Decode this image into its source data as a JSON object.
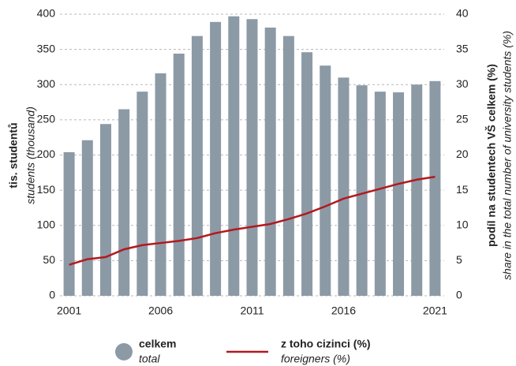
{
  "chart_data": {
    "type": "bar_line",
    "categories": [
      "2001",
      null,
      null,
      null,
      null,
      "2006",
      null,
      null,
      null,
      null,
      "2011",
      null,
      null,
      null,
      null,
      "2016",
      null,
      null,
      null,
      null,
      "2021"
    ],
    "series": [
      {
        "name": "celkem",
        "name_en": "total",
        "type": "bar",
        "color": "#8c9aa6",
        "values": [
          204,
          221,
          244,
          265,
          290,
          316,
          344,
          369,
          389,
          397,
          393,
          381,
          369,
          346,
          327,
          310,
          299,
          290,
          289,
          300,
          305
        ]
      },
      {
        "name": "z toho cizinci (%)",
        "name_en": "foreigners (%)",
        "type": "line",
        "axis": "y2",
        "color": "#b2191e",
        "values": [
          4.4,
          5.2,
          5.5,
          6.6,
          7.2,
          7.5,
          7.8,
          8.2,
          8.9,
          9.4,
          9.8,
          10.2,
          10.9,
          11.7,
          12.7,
          13.8,
          14.5,
          15.2,
          15.9,
          16.5,
          16.9
        ]
      }
    ],
    "ylim": [
      0,
      400
    ],
    "yticks": [
      0,
      50,
      100,
      150,
      200,
      250,
      300,
      350,
      400
    ],
    "y2lim": [
      0,
      40
    ],
    "y2ticks": [
      0,
      5,
      10,
      15,
      20,
      25,
      30,
      35,
      40
    ],
    "y_label": "tis. studentů",
    "y_label_en": "students (thousand)",
    "y2_label": "podíl na studentech VŠ celkem (%)",
    "y2_label_en": "share in the total number of university students (%)",
    "grid": true
  }
}
